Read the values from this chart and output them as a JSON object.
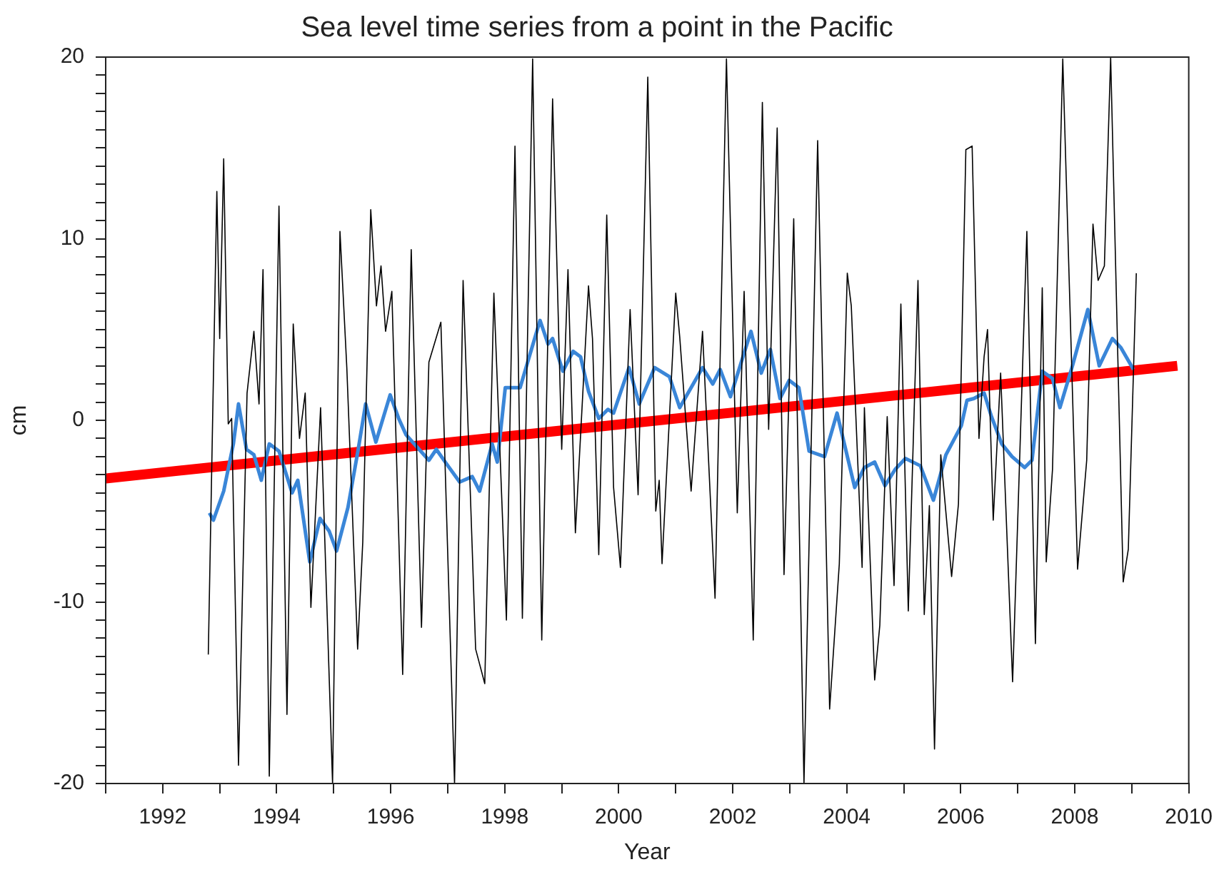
{
  "chart_data": {
    "type": "line",
    "title": "Sea level time series from a point in the Pacific",
    "xlabel": "Year",
    "ylabel": "cm",
    "xlim": [
      1991,
      2010
    ],
    "ylim": [
      -20,
      20
    ],
    "xticks": [
      {
        "value": 1991,
        "label": null
      },
      1992,
      {
        "value": 1993,
        "label": null
      },
      1994,
      {
        "value": 1995,
        "label": null
      },
      1996,
      {
        "value": 1997,
        "label": null
      },
      1998,
      {
        "value": 1999,
        "label": null
      },
      2000,
      {
        "value": 2001,
        "label": null
      },
      2002,
      {
        "value": 2003,
        "label": null
      },
      2004,
      {
        "value": 2005,
        "label": null
      },
      2006,
      {
        "value": 2007,
        "label": null
      },
      2008,
      {
        "value": 2009,
        "label": null
      },
      2010
    ],
    "yticks": [
      -20,
      {
        "value": -19,
        "label": null
      },
      {
        "value": -18,
        "label": null
      },
      {
        "value": -17,
        "label": null
      },
      {
        "value": -16,
        "label": null
      },
      {
        "value": -15,
        "label": null
      },
      {
        "value": -14,
        "label": null
      },
      {
        "value": -13,
        "label": null
      },
      {
        "value": -12,
        "label": null
      },
      {
        "value": -11,
        "label": null
      },
      -10,
      {
        "value": -9,
        "label": null
      },
      {
        "value": -8,
        "label": null
      },
      {
        "value": -7,
        "label": null
      },
      {
        "value": -6,
        "label": null
      },
      {
        "value": -5,
        "label": null
      },
      {
        "value": -4,
        "label": null
      },
      {
        "value": -3,
        "label": null
      },
      {
        "value": -2,
        "label": null
      },
      {
        "value": -1,
        "label": null
      },
      0,
      {
        "value": 1,
        "label": null
      },
      {
        "value": 2,
        "label": null
      },
      {
        "value": 3,
        "label": null
      },
      {
        "value": 4,
        "label": null
      },
      {
        "value": 5,
        "label": null
      },
      {
        "value": 6,
        "label": null
      },
      {
        "value": 7,
        "label": null
      },
      {
        "value": 8,
        "label": null
      },
      {
        "value": 9,
        "label": null
      },
      10,
      {
        "value": 11,
        "label": null
      },
      {
        "value": 12,
        "label": null
      },
      {
        "value": 13,
        "label": null
      },
      {
        "value": 14,
        "label": null
      },
      {
        "value": 15,
        "label": null
      },
      {
        "value": 16,
        "label": null
      },
      {
        "value": 17,
        "label": null
      },
      {
        "value": 18,
        "label": null
      },
      {
        "value": 19,
        "label": null
      },
      20
    ],
    "grid": false,
    "legend": false,
    "marker": "none",
    "line_style": "solid",
    "series": [
      {
        "color": "#000000",
        "x": [
          1992.8,
          1992.95,
          1993.0,
          1993.07,
          1993.15,
          1993.21,
          1993.33,
          1993.48,
          1993.6,
          1993.69,
          1993.76,
          1993.87,
          1994.04,
          1994.18,
          1994.29,
          1994.4,
          1994.5,
          1994.6,
          1994.77,
          1994.98,
          1995.11,
          1995.23,
          1995.42,
          1995.51,
          1995.65,
          1995.75,
          1995.83,
          1995.91,
          1996.02,
          1996.21,
          1996.36,
          1996.54,
          1996.67,
          1996.88,
          1997.12,
          1997.27,
          1997.49,
          1997.65,
          1997.81,
          1998.03,
          1998.18,
          1998.31,
          1998.49,
          1998.65,
          1998.84,
          1999.0,
          1999.11,
          1999.24,
          1999.47,
          1999.54,
          1999.65,
          1999.79,
          1999.91,
          2000.03,
          2000.2,
          2000.34,
          2000.51,
          2000.65,
          2000.71,
          2000.76,
          2001.0,
          2001.07,
          2001.27,
          2001.47,
          2001.69,
          2001.89,
          2002.08,
          2002.2,
          2002.36,
          2002.52,
          2002.63,
          2002.78,
          2002.9,
          2003.07,
          2003.25,
          2003.49,
          2003.7,
          2003.87,
          2004.01,
          2004.08,
          2004.27,
          2004.31,
          2004.49,
          2004.58,
          2004.71,
          2004.83,
          2004.95,
          2005.08,
          2005.25,
          2005.36,
          2005.45,
          2005.54,
          2005.65,
          2005.84,
          2005.96,
          2006.09,
          2006.2,
          2006.32,
          2006.41,
          2006.47,
          2006.57,
          2006.7,
          2006.91,
          2007.16,
          2007.31,
          2007.43,
          2007.5,
          2007.61,
          2007.79,
          2008.05,
          2008.21,
          2008.32,
          2008.41,
          2008.52,
          2008.63,
          2008.85,
          2008.94,
          2009.08
        ],
        "values": [
          -12.9,
          12.6,
          4.5,
          14.4,
          -0.2,
          0.1,
          -19.0,
          1.5,
          4.9,
          0.9,
          8.3,
          -19.6,
          11.8,
          -16.2,
          5.3,
          -1.0,
          1.5,
          -10.3,
          0.7,
          -20,
          10.4,
          2.9,
          -12.6,
          -6.7,
          11.6,
          6.3,
          8.5,
          4.9,
          7.1,
          -14.0,
          9.4,
          -11.4,
          3.2,
          5.4,
          -20,
          7.7,
          -12.6,
          -14.5,
          7.0,
          -11.0,
          15.1,
          -10.9,
          19.9,
          -12.1,
          17.7,
          -1.6,
          8.3,
          -6.2,
          7.4,
          4.5,
          -7.4,
          11.3,
          -3.7,
          -8.1,
          6.1,
          -4.1,
          18.9,
          -5.0,
          -3.3,
          -7.9,
          7.0,
          4.6,
          -3.9,
          4.9,
          -9.8,
          19.9,
          -5.1,
          7.1,
          -12.1,
          17.5,
          -0.5,
          16.1,
          -8.5,
          11.1,
          -20,
          15.4,
          -15.9,
          -7.9,
          8.1,
          6.3,
          -8.1,
          0.7,
          -14.3,
          -11.3,
          0.2,
          -9.1,
          6.4,
          -10.5,
          7.7,
          -10.7,
          -4.7,
          -18.1,
          -1.9,
          -8.6,
          -4.6,
          14.9,
          15.1,
          -1.0,
          3.5,
          5.0,
          -5.5,
          2.6,
          -14.4,
          10.4,
          -12.3,
          7.3,
          -7.8,
          -2.7,
          19.9,
          -8.2,
          -2.2,
          10.8,
          7.7,
          8.5,
          20.0,
          -8.9,
          -7.1,
          8.1
        ]
      },
      {
        "color": "#3a86d8",
        "x": [
          1992.82,
          1992.89,
          1993.07,
          1993.24,
          1993.33,
          1993.47,
          1993.6,
          1993.73,
          1993.87,
          1994.04,
          1994.27,
          1994.37,
          1994.58,
          1994.76,
          1994.92,
          1995.05,
          1995.25,
          1995.43,
          1995.56,
          1995.74,
          1995.99,
          1996.14,
          1996.27,
          1996.67,
          1996.8,
          1996.98,
          1997.21,
          1997.43,
          1997.56,
          1997.78,
          1997.87,
          1998.01,
          1998.27,
          1998.62,
          1998.76,
          1998.84,
          1999.02,
          1999.2,
          1999.33,
          1999.47,
          1999.65,
          1999.81,
          1999.91,
          2000.18,
          2000.36,
          2000.63,
          2000.89,
          2001.07,
          2001.47,
          2001.65,
          2001.78,
          2001.96,
          2002.32,
          2002.5,
          2002.66,
          2002.83,
          2002.99,
          2003.16,
          2003.34,
          2003.61,
          2003.83,
          2004.14,
          2004.31,
          2004.49,
          2004.67,
          2004.85,
          2005.03,
          2005.29,
          2005.52,
          2005.74,
          2006.01,
          2006.11,
          2006.23,
          2006.41,
          2006.54,
          2006.72,
          2006.9,
          2007.12,
          2007.25,
          2007.43,
          2007.61,
          2007.74,
          2007.96,
          2008.23,
          2008.43,
          2008.66,
          2008.81,
          2009.03
        ],
        "values": [
          -5.1,
          -5.5,
          -3.9,
          -1.3,
          0.9,
          -1.6,
          -1.9,
          -3.3,
          -1.3,
          -1.7,
          -4.0,
          -3.3,
          -7.8,
          -5.4,
          -6.1,
          -7.2,
          -4.8,
          -1.6,
          0.9,
          -1.2,
          1.4,
          0.1,
          -0.8,
          -2.2,
          -1.6,
          -2.4,
          -3.4,
          -3.1,
          -3.9,
          -1.3,
          -2.3,
          1.8,
          1.8,
          5.5,
          4.2,
          4.5,
          2.7,
          3.8,
          3.5,
          1.6,
          0.1,
          0.6,
          0.4,
          2.9,
          0.9,
          2.9,
          2.4,
          0.7,
          2.9,
          2.0,
          2.8,
          1.3,
          4.9,
          2.6,
          3.9,
          1.2,
          2.2,
          1.8,
          -1.7,
          -2.0,
          0.4,
          -3.7,
          -2.6,
          -2.3,
          -3.6,
          -2.7,
          -2.1,
          -2.5,
          -4.4,
          -1.9,
          -0.3,
          1.1,
          1.2,
          1.5,
          0.2,
          -1.3,
          -2.0,
          -2.6,
          -2.2,
          2.7,
          2.3,
          0.7,
          3.0,
          6.1,
          3.0,
          4.5,
          4.0,
          2.8
        ]
      },
      {
        "color": "#ff0000",
        "x": [
          1991,
          2009.8
        ],
        "values": [
          -3.2,
          3.0
        ]
      }
    ]
  }
}
